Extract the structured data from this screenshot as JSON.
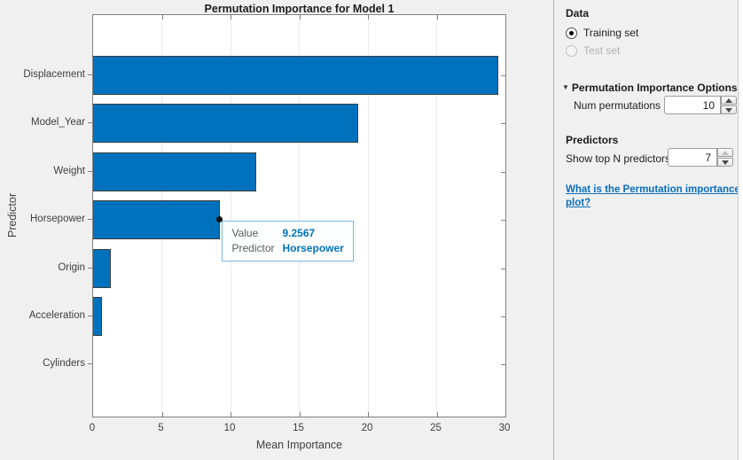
{
  "chart_data": {
    "type": "bar",
    "orientation": "horizontal",
    "title": "Permutation Importance for Model 1",
    "xlabel": "Mean Importance",
    "ylabel": "Predictor",
    "categories": [
      "Displacement",
      "Model_Year",
      "Weight",
      "Horsepower",
      "Origin",
      "Acceleration",
      "Cylinders"
    ],
    "values": [
      29.5,
      19.3,
      11.9,
      9.2567,
      1.3,
      0.65,
      0
    ],
    "xlim": [
      0,
      30
    ],
    "xticks": [
      0,
      5,
      10,
      15,
      20,
      25,
      30
    ],
    "grid": true,
    "bar_color": "#0072bd",
    "legend_position": "none"
  },
  "tooltip": {
    "target_category": "Horsepower",
    "rows": [
      {
        "label": "Value",
        "value": "9.2567"
      },
      {
        "label": "Predictor",
        "value": "Horsepower"
      }
    ]
  },
  "panel": {
    "data_section": {
      "title": "Data",
      "radios": [
        {
          "label": "Training set",
          "selected": true,
          "enabled": true
        },
        {
          "label": "Test set",
          "selected": false,
          "enabled": false
        }
      ]
    },
    "perm_section": {
      "collapse_icon": "▼",
      "title": "Permutation Importance Options",
      "num_label": "Num permutations",
      "num_value": "10"
    },
    "predictors_section": {
      "title": "Predictors",
      "show_label": "Show top N predictors",
      "show_value": "7"
    },
    "help_link": "What is the Permutation importance plot?"
  },
  "colors": {
    "bar": "#0072bd",
    "link": "#0a6ebd",
    "background": "#f0f0f0",
    "grid": "#ebebeb",
    "axis": "#818181"
  }
}
